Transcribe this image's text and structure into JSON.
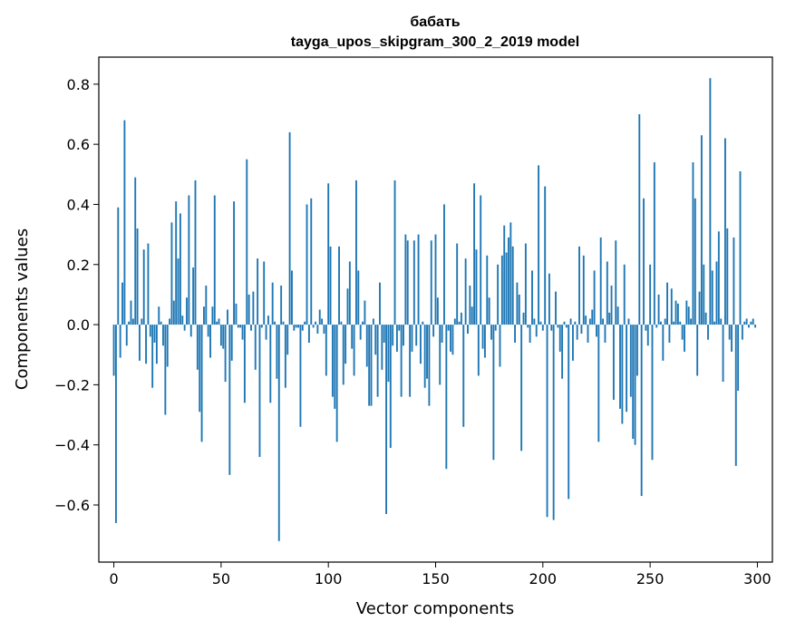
{
  "chart_data": {
    "type": "bar",
    "title": "бабать",
    "subtitle": "tayga_upos_skipgram_300_2_2019 model",
    "xlabel": "Vector components",
    "ylabel": "Components values",
    "xlim": [
      -7,
      307
    ],
    "ylim": [
      -0.79,
      0.89
    ],
    "xticks": [
      0,
      50,
      100,
      150,
      200,
      250,
      300
    ],
    "yticks": [
      -0.6,
      -0.4,
      -0.2,
      0.0,
      0.2,
      0.4,
      0.6,
      0.8
    ],
    "ytick_labels": [
      "−0.6",
      "−0.4",
      "−0.2",
      "0.0",
      "0.2",
      "0.4",
      "0.6",
      "0.8"
    ],
    "bar_color": "#1f77b4",
    "x": "0..299 (component index)",
    "values": [
      -0.17,
      -0.66,
      0.39,
      -0.11,
      0.14,
      0.68,
      -0.07,
      0.01,
      0.08,
      0.02,
      0.49,
      0.32,
      -0.12,
      0.02,
      0.25,
      -0.13,
      0.27,
      -0.04,
      -0.21,
      -0.06,
      -0.13,
      0.06,
      0.01,
      -0.07,
      -0.3,
      -0.14,
      0.02,
      0.34,
      0.08,
      0.41,
      0.22,
      0.37,
      0.03,
      -0.02,
      0.09,
      0.43,
      -0.04,
      0.19,
      0.48,
      -0.15,
      -0.29,
      -0.39,
      0.06,
      0.13,
      -0.04,
      -0.11,
      0.06,
      0.43,
      0.01,
      0.02,
      -0.07,
      -0.08,
      -0.19,
      0.05,
      -0.5,
      -0.12,
      0.41,
      0.07,
      -0.01,
      -0.01,
      -0.05,
      -0.26,
      0.55,
      0.1,
      -0.02,
      0.11,
      -0.15,
      0.22,
      -0.44,
      -0.01,
      0.21,
      -0.05,
      0.03,
      -0.26,
      0.14,
      0.01,
      -0.18,
      -0.72,
      0.13,
      0.01,
      -0.21,
      -0.1,
      0.64,
      0.18,
      -0.02,
      -0.01,
      -0.01,
      -0.34,
      -0.02,
      0.01,
      0.4,
      -0.06,
      0.42,
      -0.01,
      0.01,
      -0.03,
      0.05,
      0.02,
      -0.03,
      -0.17,
      0.47,
      0.26,
      -0.24,
      -0.28,
      -0.39,
      0.26,
      0.01,
      -0.2,
      -0.13,
      0.12,
      0.21,
      -0.08,
      -0.17,
      0.48,
      0.18,
      -0.05,
      0.01,
      0.08,
      -0.14,
      -0.27,
      -0.27,
      0.02,
      -0.1,
      -0.24,
      0.14,
      -0.15,
      -0.06,
      -0.63,
      -0.19,
      -0.41,
      -0.07,
      0.48,
      -0.09,
      -0.02,
      -0.24,
      -0.07,
      0.3,
      0.28,
      -0.24,
      -0.09,
      0.28,
      -0.07,
      0.3,
      -0.13,
      0.01,
      -0.21,
      -0.18,
      -0.27,
      0.28,
      -0.04,
      0.3,
      0.09,
      -0.2,
      -0.06,
      0.4,
      -0.48,
      -0.02,
      -0.09,
      -0.1,
      0.02,
      0.27,
      0.01,
      0.04,
      -0.34,
      0.22,
      -0.03,
      0.13,
      0.06,
      0.47,
      0.25,
      -0.17,
      0.43,
      -0.08,
      -0.11,
      0.23,
      0.09,
      -0.05,
      -0.45,
      -0.02,
      0.2,
      -0.14,
      0.23,
      0.33,
      0.24,
      0.29,
      0.34,
      0.26,
      -0.06,
      0.14,
      0.1,
      -0.42,
      0.04,
      0.27,
      -0.01,
      -0.06,
      0.18,
      0.02,
      -0.04,
      0.53,
      0.01,
      -0.02,
      0.46,
      -0.64,
      0.17,
      -0.02,
      -0.65,
      0.11,
      -0.01,
      -0.09,
      -0.18,
      0.01,
      -0.01,
      -0.58,
      0.02,
      -0.12,
      0.01,
      -0.05,
      0.26,
      -0.03,
      0.23,
      0.03,
      -0.06,
      0.02,
      0.05,
      0.18,
      -0.04,
      -0.39,
      0.29,
      0.02,
      -0.06,
      0.21,
      0.04,
      0.13,
      -0.25,
      0.28,
      0.06,
      -0.28,
      -0.33,
      0.2,
      -0.29,
      0.02,
      -0.24,
      -0.38,
      -0.4,
      -0.17,
      0.7,
      -0.57,
      0.42,
      -0.02,
      -0.07,
      0.2,
      -0.45,
      0.54,
      -0.01,
      0.1,
      0.01,
      -0.12,
      0.02,
      0.14,
      -0.06,
      0.12,
      0.01,
      0.08,
      0.07,
      0.01,
      -0.05,
      -0.09,
      0.08,
      0.06,
      0.02,
      0.54,
      0.42,
      -0.17,
      0.11,
      0.63,
      0.2,
      0.04,
      -0.05,
      0.82,
      0.18,
      0.01,
      0.21,
      0.31,
      0.02,
      -0.19,
      0.62,
      0.32,
      -0.05,
      -0.09,
      0.29,
      -0.47,
      -0.22,
      0.51,
      -0.05,
      0.01,
      0.02,
      -0.01,
      0.01,
      0.02,
      -0.01
    ]
  }
}
